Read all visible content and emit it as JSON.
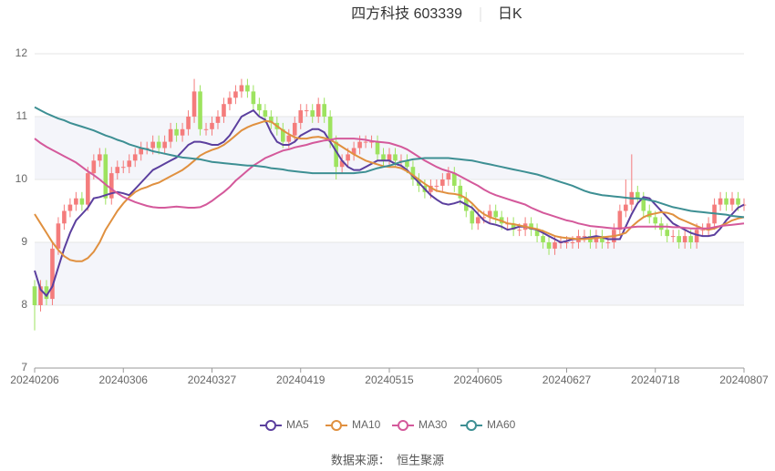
{
  "chart_data": {
    "type": "candlestick",
    "title": "四方科技 603339",
    "subtitle": "日K",
    "source": "数据来源：  恒生聚源",
    "up_color": "#f47c7c",
    "down_color": "#9de35f",
    "ylim": [
      7,
      12
    ],
    "yticks": [
      7,
      8,
      9,
      10,
      11,
      12
    ],
    "categories": [
      "20240206",
      null,
      null,
      null,
      null,
      null,
      null,
      null,
      null,
      null,
      null,
      null,
      null,
      null,
      null,
      "20240306",
      null,
      null,
      null,
      null,
      null,
      null,
      null,
      null,
      null,
      null,
      null,
      null,
      null,
      null,
      "20240327",
      null,
      null,
      null,
      null,
      null,
      null,
      null,
      null,
      null,
      null,
      null,
      null,
      null,
      null,
      "20240419",
      null,
      null,
      null,
      null,
      null,
      null,
      null,
      null,
      null,
      null,
      null,
      null,
      null,
      null,
      "20240515",
      null,
      null,
      null,
      null,
      null,
      null,
      null,
      null,
      null,
      null,
      null,
      null,
      null,
      null,
      "20240605",
      null,
      null,
      null,
      null,
      null,
      null,
      null,
      null,
      null,
      null,
      null,
      null,
      null,
      null,
      "20240627",
      null,
      null,
      null,
      null,
      null,
      null,
      null,
      null,
      null,
      null,
      null,
      null,
      null,
      null,
      "20240718",
      null,
      null,
      null,
      null,
      null,
      null,
      null,
      null,
      null,
      null,
      null,
      null,
      null,
      null,
      "20240807"
    ],
    "open": [
      8.3,
      8.0,
      8.3,
      8.1,
      8.9,
      9.3,
      9.5,
      9.6,
      9.7,
      9.6,
      10.1,
      10.3,
      10.4,
      9.7,
      10.1,
      10.2,
      10.2,
      10.3,
      10.4,
      10.5,
      10.5,
      10.6,
      10.5,
      10.6,
      10.8,
      10.7,
      10.8,
      11.0,
      11.4,
      10.8,
      10.8,
      10.9,
      11.0,
      11.2,
      11.3,
      11.4,
      11.5,
      11.4,
      11.2,
      11.1,
      11.0,
      10.9,
      10.8,
      10.6,
      10.7,
      10.9,
      11.1,
      11.1,
      11.0,
      11.2,
      11.0,
      10.6,
      10.2,
      10.3,
      10.4,
      10.5,
      10.6,
      10.6,
      10.6,
      10.4,
      10.3,
      10.4,
      10.3,
      10.3,
      10.2,
      10.0,
      9.9,
      9.8,
      9.9,
      9.9,
      10.0,
      10.1,
      9.9,
      9.7,
      9.5,
      9.3,
      9.4,
      9.4,
      9.5,
      9.4,
      9.3,
      9.3,
      9.2,
      9.2,
      9.3,
      9.2,
      9.1,
      9.0,
      8.9,
      9.0,
      9.0,
      9.0,
      9.0,
      9.1,
      9.1,
      9.0,
      9.1,
      9.0,
      9.0,
      9.2,
      9.5,
      9.6,
      9.8,
      9.7,
      9.5,
      9.4,
      9.3,
      9.2,
      9.1,
      9.1,
      9.0,
      9.1,
      9.0,
      9.2,
      9.2,
      9.3,
      9.6,
      9.7,
      9.6,
      9.7,
      9.6
    ],
    "high": [
      8.4,
      8.4,
      8.4,
      9.0,
      9.4,
      9.6,
      9.7,
      9.8,
      9.8,
      10.2,
      10.4,
      10.5,
      10.5,
      10.2,
      10.3,
      10.3,
      10.4,
      10.5,
      10.6,
      10.6,
      10.7,
      10.7,
      10.7,
      10.9,
      10.9,
      10.9,
      11.1,
      11.6,
      11.5,
      10.9,
      11.0,
      11.1,
      11.3,
      11.4,
      11.5,
      11.6,
      11.6,
      11.5,
      11.3,
      11.2,
      11.1,
      11.0,
      10.9,
      10.8,
      11.0,
      11.2,
      11.2,
      11.2,
      11.3,
      11.3,
      11.1,
      10.7,
      10.4,
      10.5,
      10.6,
      10.7,
      10.7,
      10.7,
      10.7,
      10.5,
      10.5,
      10.5,
      10.4,
      10.4,
      10.3,
      10.1,
      10.0,
      10.0,
      10.0,
      10.1,
      10.2,
      10.2,
      10.0,
      9.8,
      9.6,
      9.5,
      9.5,
      9.6,
      9.6,
      9.5,
      9.4,
      9.4,
      9.3,
      9.4,
      9.4,
      9.3,
      9.2,
      9.1,
      9.1,
      9.1,
      9.1,
      9.1,
      9.2,
      9.2,
      9.2,
      9.2,
      9.2,
      9.1,
      9.3,
      9.6,
      10.0,
      10.4,
      9.9,
      9.8,
      9.6,
      9.5,
      9.4,
      9.3,
      9.2,
      9.2,
      9.2,
      9.2,
      9.3,
      9.3,
      9.4,
      9.7,
      9.8,
      9.8,
      9.8,
      9.8,
      9.7
    ],
    "low": [
      7.6,
      7.9,
      8.0,
      8.0,
      8.8,
      9.2,
      9.4,
      9.5,
      9.5,
      9.5,
      10.0,
      10.2,
      9.6,
      9.6,
      10.0,
      10.1,
      10.1,
      10.2,
      10.3,
      10.4,
      10.4,
      10.4,
      10.4,
      10.5,
      10.6,
      10.6,
      10.7,
      10.9,
      10.7,
      10.7,
      10.7,
      10.8,
      10.9,
      11.1,
      11.2,
      11.3,
      11.3,
      11.1,
      11.0,
      10.9,
      10.8,
      10.7,
      10.5,
      10.5,
      10.6,
      10.8,
      11.0,
      10.9,
      10.9,
      10.9,
      10.5,
      10.0,
      10.1,
      10.2,
      10.3,
      10.4,
      10.5,
      10.5,
      10.3,
      10.2,
      10.2,
      10.2,
      10.2,
      10.1,
      9.9,
      9.8,
      9.7,
      9.7,
      9.8,
      9.8,
      9.9,
      9.8,
      9.6,
      9.4,
      9.2,
      9.2,
      9.3,
      9.3,
      9.3,
      9.2,
      9.2,
      9.1,
      9.1,
      9.1,
      9.1,
      9.0,
      8.9,
      8.8,
      8.8,
      8.9,
      8.9,
      8.9,
      8.9,
      9.0,
      8.9,
      8.9,
      8.9,
      8.9,
      8.9,
      9.1,
      9.4,
      9.5,
      9.6,
      9.4,
      9.3,
      9.2,
      9.1,
      9.0,
      9.0,
      8.9,
      8.9,
      8.9,
      8.9,
      9.1,
      9.1,
      9.2,
      9.5,
      9.5,
      9.5,
      9.5,
      9.5
    ],
    "close": [
      8.0,
      8.3,
      8.1,
      8.9,
      9.3,
      9.5,
      9.6,
      9.7,
      9.6,
      10.1,
      10.3,
      10.4,
      9.7,
      10.1,
      10.2,
      10.2,
      10.3,
      10.4,
      10.5,
      10.5,
      10.6,
      10.5,
      10.6,
      10.8,
      10.7,
      10.8,
      11.0,
      11.4,
      10.8,
      10.8,
      10.9,
      11.0,
      11.2,
      11.3,
      11.4,
      11.5,
      11.4,
      11.2,
      11.1,
      11.0,
      10.9,
      10.8,
      10.6,
      10.7,
      10.9,
      11.1,
      11.1,
      11.0,
      11.2,
      11.0,
      10.6,
      10.2,
      10.3,
      10.4,
      10.5,
      10.6,
      10.6,
      10.6,
      10.4,
      10.3,
      10.4,
      10.3,
      10.3,
      10.2,
      10.0,
      9.9,
      9.8,
      9.9,
      9.9,
      10.0,
      10.1,
      9.9,
      9.7,
      9.5,
      9.3,
      9.4,
      9.4,
      9.5,
      9.4,
      9.3,
      9.3,
      9.2,
      9.2,
      9.3,
      9.2,
      9.1,
      9.0,
      8.9,
      9.0,
      9.0,
      9.0,
      9.0,
      9.1,
      9.1,
      9.0,
      9.1,
      9.0,
      9.0,
      9.2,
      9.5,
      9.6,
      9.8,
      9.7,
      9.5,
      9.4,
      9.3,
      9.2,
      9.1,
      9.1,
      9.0,
      9.1,
      9.0,
      9.2,
      9.2,
      9.3,
      9.6,
      9.7,
      9.6,
      9.7,
      9.6,
      9.6
    ],
    "series": [
      {
        "name": "MA5",
        "color": "#5b3f9e",
        "values": [
          8.55,
          8.25,
          8.15,
          8.3,
          8.6,
          8.9,
          9.15,
          9.35,
          9.45,
          9.55,
          9.7,
          9.72,
          9.75,
          9.78,
          9.8,
          9.78,
          9.75,
          9.85,
          9.95,
          10.05,
          10.15,
          10.2,
          10.25,
          10.3,
          10.35,
          10.45,
          10.55,
          10.6,
          10.6,
          10.58,
          10.55,
          10.55,
          10.6,
          10.7,
          10.85,
          11.0,
          11.05,
          11.1,
          11.0,
          10.95,
          10.75,
          10.6,
          10.55,
          10.55,
          10.6,
          10.7,
          10.75,
          10.8,
          10.8,
          10.75,
          10.6,
          10.45,
          10.3,
          10.2,
          10.15,
          10.15,
          10.2,
          10.25,
          10.3,
          10.3,
          10.3,
          10.25,
          10.22,
          10.15,
          10.05,
          9.95,
          9.85,
          9.75,
          9.68,
          9.62,
          9.6,
          9.62,
          9.65,
          9.6,
          9.55,
          9.45,
          9.35,
          9.3,
          9.28,
          9.25,
          9.2,
          9.22,
          9.25,
          9.25,
          9.22,
          9.2,
          9.15,
          9.1,
          9.05,
          9.0,
          9.02,
          9.05,
          9.05,
          9.07,
          9.08,
          9.1,
          9.08,
          9.05,
          9.05,
          9.05,
          9.25,
          9.45,
          9.62,
          9.72,
          9.7,
          9.6,
          9.5,
          9.4,
          9.3,
          9.25,
          9.2,
          9.15,
          9.12,
          9.1,
          9.1,
          9.12,
          9.22,
          9.35,
          9.45,
          9.55,
          9.6
        ]
      },
      {
        "name": "MA10",
        "color": "#e0903f",
        "values": [
          9.45,
          9.3,
          9.15,
          9.0,
          8.88,
          8.78,
          8.72,
          8.7,
          8.7,
          8.75,
          8.85,
          9.0,
          9.2,
          9.35,
          9.5,
          9.62,
          9.72,
          9.8,
          9.85,
          9.88,
          9.92,
          9.95,
          10.0,
          10.05,
          10.1,
          10.15,
          10.22,
          10.3,
          10.38,
          10.43,
          10.47,
          10.5,
          10.55,
          10.62,
          10.7,
          10.78,
          10.83,
          10.87,
          10.9,
          10.93,
          10.92,
          10.85,
          10.78,
          10.72,
          10.67,
          10.65,
          10.65,
          10.67,
          10.68,
          10.66,
          10.63,
          10.58,
          10.52,
          10.46,
          10.4,
          10.35,
          10.3,
          10.27,
          10.24,
          10.21,
          10.2,
          10.2,
          10.18,
          10.13,
          10.07,
          10.0,
          9.93,
          9.87,
          9.82,
          9.8,
          9.78,
          9.77,
          9.75,
          9.7,
          9.62,
          9.52,
          9.45,
          9.4,
          9.37,
          9.34,
          9.3,
          9.29,
          9.27,
          9.25,
          9.23,
          9.21,
          9.18,
          9.14,
          9.1,
          9.08,
          9.07,
          9.06,
          9.05,
          9.05,
          9.06,
          9.07,
          9.08,
          9.09,
          9.1,
          9.12,
          9.15,
          9.25,
          9.33,
          9.4,
          9.44,
          9.46,
          9.48,
          9.47,
          9.44,
          9.38,
          9.34,
          9.3,
          9.26,
          9.22,
          9.2,
          9.22,
          9.26,
          9.3,
          9.35,
          9.38,
          9.4
        ]
      },
      {
        "name": "MA30",
        "color": "#d4599b",
        "values": [
          10.65,
          10.58,
          10.52,
          10.47,
          10.42,
          10.37,
          10.32,
          10.27,
          10.2,
          10.13,
          10.07,
          10.0,
          9.92,
          9.85,
          9.78,
          9.72,
          9.68,
          9.64,
          9.61,
          9.58,
          9.56,
          9.55,
          9.55,
          9.56,
          9.57,
          9.56,
          9.55,
          9.55,
          9.56,
          9.6,
          9.66,
          9.73,
          9.8,
          9.88,
          9.98,
          10.06,
          10.14,
          10.22,
          10.28,
          10.34,
          10.38,
          10.42,
          10.46,
          10.48,
          10.51,
          10.53,
          10.55,
          10.58,
          10.6,
          10.62,
          10.63,
          10.65,
          10.65,
          10.65,
          10.65,
          10.64,
          10.63,
          10.61,
          10.6,
          10.59,
          10.58,
          10.55,
          10.52,
          10.48,
          10.42,
          10.36,
          10.3,
          10.25,
          10.2,
          10.16,
          10.13,
          10.1,
          10.05,
          10.0,
          9.95,
          9.9,
          9.84,
          9.79,
          9.75,
          9.72,
          9.69,
          9.66,
          9.63,
          9.6,
          9.55,
          9.51,
          9.47,
          9.44,
          9.41,
          9.38,
          9.35,
          9.33,
          9.3,
          9.28,
          9.26,
          9.25,
          9.24,
          9.23,
          9.22,
          9.22,
          9.23,
          9.24,
          9.25,
          9.25,
          9.25,
          9.25,
          9.25,
          9.25,
          9.24,
          9.24,
          9.23,
          9.22,
          9.22,
          9.22,
          9.22,
          9.24,
          9.26,
          9.27,
          9.28,
          9.29,
          9.3
        ]
      },
      {
        "name": "MA60",
        "color": "#3d8f93",
        "values": [
          11.15,
          11.1,
          11.05,
          11.01,
          10.97,
          10.94,
          10.9,
          10.87,
          10.84,
          10.81,
          10.78,
          10.74,
          10.7,
          10.67,
          10.63,
          10.6,
          10.56,
          10.53,
          10.5,
          10.48,
          10.45,
          10.43,
          10.41,
          10.39,
          10.37,
          10.35,
          10.34,
          10.33,
          10.32,
          10.3,
          10.28,
          10.27,
          10.26,
          10.25,
          10.24,
          10.23,
          10.22,
          10.22,
          10.21,
          10.2,
          10.18,
          10.17,
          10.16,
          10.14,
          10.13,
          10.12,
          10.11,
          10.1,
          10.1,
          10.1,
          10.1,
          10.1,
          10.1,
          10.1,
          10.1,
          10.11,
          10.12,
          10.15,
          10.18,
          10.2,
          10.22,
          10.25,
          10.28,
          10.3,
          10.32,
          10.33,
          10.34,
          10.34,
          10.34,
          10.34,
          10.34,
          10.33,
          10.32,
          10.31,
          10.3,
          10.28,
          10.26,
          10.24,
          10.22,
          10.2,
          10.18,
          10.16,
          10.14,
          10.12,
          10.1,
          10.08,
          10.05,
          10.02,
          9.99,
          9.96,
          9.93,
          9.9,
          9.86,
          9.82,
          9.79,
          9.77,
          9.75,
          9.74,
          9.73,
          9.72,
          9.71,
          9.7,
          9.7,
          9.69,
          9.67,
          9.65,
          9.62,
          9.59,
          9.56,
          9.54,
          9.52,
          9.5,
          9.49,
          9.48,
          9.47,
          9.46,
          9.45,
          9.44,
          9.42,
          9.41,
          9.4
        ]
      }
    ]
  }
}
